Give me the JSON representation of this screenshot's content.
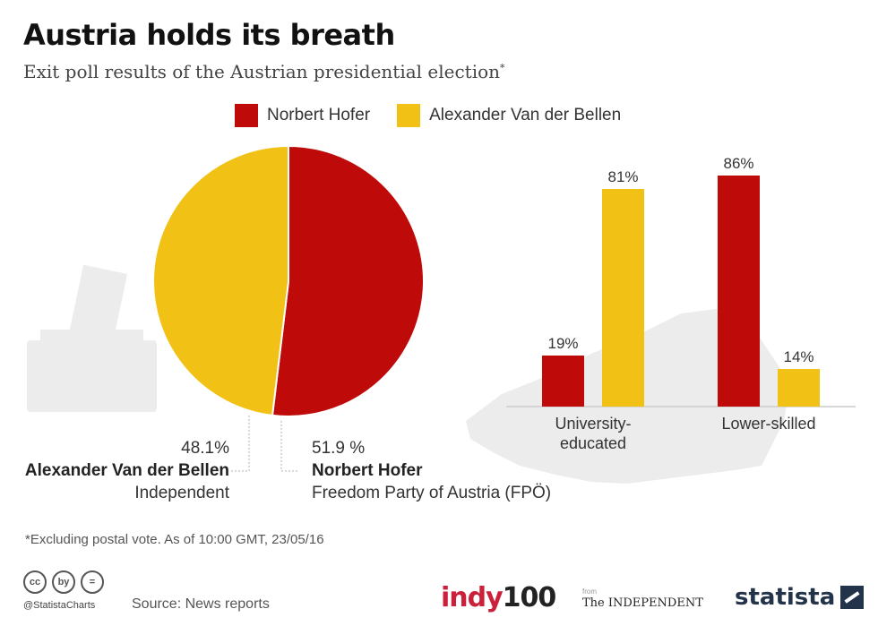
{
  "header": {
    "title": "Austria holds its breath",
    "subtitle": "Exit poll results of the Austrian presidential election",
    "subtitle_mark": "*"
  },
  "colors": {
    "hofer": "#bf0a0a",
    "vdb": "#f2c116",
    "silhouette": "#ececec"
  },
  "chart_data": [
    {
      "type": "pie",
      "slices": [
        {
          "name": "Norbert Hofer",
          "value": 51.9,
          "value_label": "51.9 %",
          "detail": "Freedom Party of Austria (FPÖ)"
        },
        {
          "name": "Alexander Van der Bellen",
          "value": 48.1,
          "value_label": "48.1%",
          "detail": "Independent"
        }
      ]
    },
    {
      "type": "bar",
      "categories": [
        [
          "University-",
          "educated"
        ],
        [
          "Lower-skilled"
        ]
      ],
      "series": [
        {
          "name": "Norbert Hofer",
          "values": [
            19,
            86
          ],
          "labels": [
            "19%",
            "86%"
          ]
        },
        {
          "name": "Alexander Van der Bellen",
          "values": [
            81,
            14
          ],
          "labels": [
            "81%",
            "14%"
          ]
        }
      ],
      "ylim": [
        0,
        100
      ],
      "legend": "top",
      "grid": false
    }
  ],
  "legend": {
    "hofer": "Norbert Hofer",
    "vdb": "Alexander Van der Bellen"
  },
  "footer": {
    "footnote": "*Excluding postal vote. As of 10:00 GMT, 23/05/16",
    "source": "Source: News reports",
    "handle": "@StatistaCharts",
    "cc_icons": [
      "cc",
      "by",
      "="
    ],
    "logo_indy_a": "indy",
    "logo_indy_b": "100",
    "logo_from": "from",
    "logo_independent": "The INDEPENDENT",
    "logo_statista": "statista"
  }
}
